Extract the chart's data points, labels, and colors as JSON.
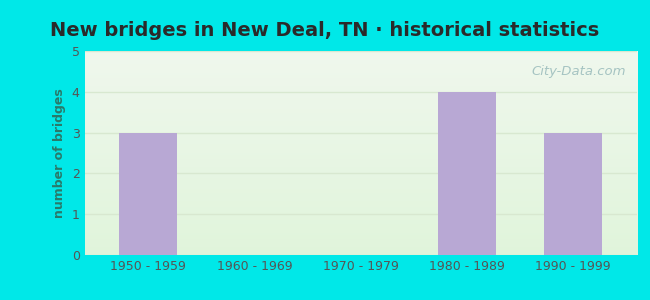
{
  "title": "New bridges in New Deal, TN · historical statistics",
  "categories": [
    "1950 - 1959",
    "1960 - 1969",
    "1970 - 1979",
    "1980 - 1989",
    "1990 - 1999"
  ],
  "values": [
    3,
    0,
    0,
    4,
    3
  ],
  "bar_color": "#b8a8d4",
  "ylabel": "number of bridges",
  "ylim": [
    0,
    5
  ],
  "yticks": [
    0,
    1,
    2,
    3,
    4,
    5
  ],
  "title_fontsize": 14,
  "axis_label_fontsize": 9,
  "tick_fontsize": 9,
  "outer_bg_color": "#00e8e8",
  "inner_bg_top_color": "#eaf2e8",
  "inner_bg_bottom_color": "#f8fcf4",
  "title_color": "#2a2a2a",
  "ylabel_color": "#2a7a6a",
  "tick_color": "#555555",
  "grid_color": "#d8e8d0",
  "watermark_text": "City-Data.com",
  "watermark_color": "#99bbbb",
  "bar_width": 0.55
}
